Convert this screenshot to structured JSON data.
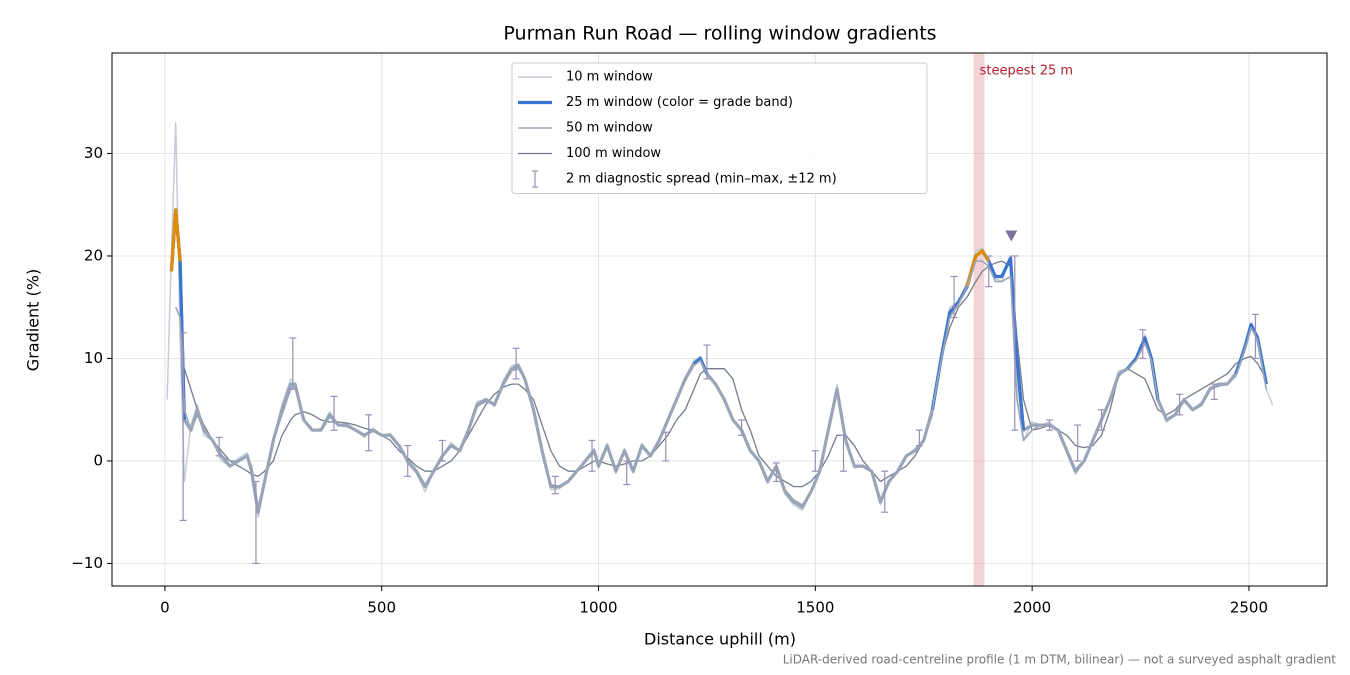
{
  "chart_data": {
    "type": "line",
    "title": "Purman Run Road — rolling window gradients",
    "xlabel": "Distance uphill (m)",
    "ylabel": "Gradient (%)",
    "note": "LiDAR-derived road-centreline profile (1 m DTM, bilinear) — not a surveyed asphalt gradient",
    "xlim": [
      -122,
      2680
    ],
    "ylim": [
      -12.2,
      39.8
    ],
    "xticks": [
      0,
      500,
      1000,
      1500,
      2000,
      2500
    ],
    "yticks": [
      {
        "value": -10,
        "label": "−10"
      },
      0,
      10,
      20,
      30
    ],
    "grid": true,
    "legend": "upper center",
    "x": [
      5,
      15,
      25,
      35,
      45,
      60,
      75,
      90,
      110,
      130,
      150,
      170,
      190,
      200,
      215,
      230,
      250,
      270,
      290,
      300,
      320,
      340,
      360,
      380,
      400,
      420,
      440,
      460,
      480,
      500,
      520,
      540,
      560,
      580,
      600,
      620,
      640,
      660,
      680,
      700,
      720,
      740,
      760,
      780,
      800,
      815,
      830,
      850,
      870,
      890,
      910,
      930,
      950,
      970,
      990,
      1000,
      1020,
      1040,
      1060,
      1080,
      1100,
      1120,
      1140,
      1160,
      1180,
      1200,
      1220,
      1235,
      1250,
      1270,
      1290,
      1310,
      1330,
      1350,
      1370,
      1390,
      1410,
      1430,
      1450,
      1470,
      1490,
      1510,
      1530,
      1550,
      1570,
      1590,
      1610,
      1630,
      1650,
      1670,
      1690,
      1710,
      1730,
      1750,
      1770,
      1790,
      1810,
      1830,
      1850,
      1870,
      1885,
      1900,
      1915,
      1930,
      1950,
      1965,
      1980,
      2000,
      2020,
      2040,
      2060,
      2080,
      2100,
      2120,
      2140,
      2160,
      2180,
      2200,
      2220,
      2240,
      2260,
      2275,
      2290,
      2310,
      2330,
      2350,
      2370,
      2390,
      2410,
      2430,
      2450,
      2470,
      2490,
      2505,
      2520,
      2540,
      2555
    ],
    "series": [
      {
        "name": "10 m window",
        "color": "#c5ccd8",
        "width": 1.5,
        "values": [
          6,
          20,
          33,
          12,
          -2,
          3.5,
          5.5,
          2.5,
          2,
          0,
          -0.5,
          0.3,
          0.8,
          -1.5,
          -5.5,
          -2,
          2,
          5.5,
          8,
          7.5,
          4,
          3,
          3.2,
          4.8,
          3.5,
          3.3,
          3,
          2.3,
          3.2,
          2.5,
          2.7,
          1.5,
          -0.3,
          -1.2,
          -3,
          -1,
          0.5,
          1.8,
          1,
          3.2,
          5.8,
          6,
          5.3,
          7.8,
          9.3,
          9.5,
          8,
          5,
          0.8,
          -2.8,
          -2.7,
          -2,
          -1,
          0.2,
          1.2,
          -0.7,
          1.7,
          -1.2,
          1.2,
          -1.2,
          1.7,
          0.5,
          2.2,
          4,
          6.2,
          8,
          9.8,
          10.2,
          8.5,
          7.5,
          6.2,
          4,
          3,
          1,
          0,
          -2.2,
          -0.5,
          -3.2,
          -4.3,
          -4.8,
          -3,
          -1,
          3,
          7.5,
          2,
          -0.7,
          -0.5,
          -1,
          -4.3,
          -2,
          -1,
          0.5,
          1.2,
          2,
          5.5,
          10.5,
          15,
          15.5,
          17.5,
          20.5,
          20.8,
          19.5,
          17.8,
          17.5,
          20,
          8,
          2,
          3.8,
          3.5,
          3.8,
          3,
          0.8,
          -1.3,
          0,
          2,
          4,
          6.2,
          8.8,
          9,
          10.2,
          12.3,
          10,
          5.8,
          3.8,
          4.5,
          6,
          5,
          5.7,
          7.2,
          7.5,
          7.5,
          8.8,
          11.2,
          13.5,
          12,
          7,
          5.4
        ]
      },
      {
        "name": "25 m window (color = grade band)",
        "color": "#3a75d0",
        "line_color": "#97a5b8",
        "width": 3.2,
        "grade_bands": [
          {
            "min": 10,
            "color": "#3a75d0"
          },
          {
            "min": 20,
            "color": "#e08c00"
          },
          {
            "min": 25,
            "color": "#c0201e"
          }
        ],
        "values": [
          null,
          18.5,
          24.5,
          19.5,
          4,
          3,
          5,
          3,
          2,
          0.5,
          -0.5,
          0,
          0.5,
          -1,
          -5,
          -2,
          2,
          5,
          7.5,
          7.5,
          4,
          3,
          3,
          4.5,
          3.5,
          3.5,
          3,
          2.5,
          3,
          2.5,
          2.5,
          1.5,
          0,
          -1,
          -2.5,
          -1,
          0.5,
          1.5,
          1,
          3,
          5.5,
          6,
          5.5,
          7.5,
          9,
          9.3,
          8,
          5,
          1,
          -2.5,
          -2.5,
          -2,
          -1,
          0,
          1,
          -0.5,
          1.5,
          -1,
          1,
          -1,
          1.5,
          0.5,
          2,
          4,
          6,
          8,
          9.5,
          10,
          8.5,
          7.5,
          6,
          4,
          3,
          1,
          0,
          -2,
          -0.5,
          -3,
          -4,
          -4.5,
          -3,
          -1,
          3,
          7,
          2,
          -0.5,
          -0.5,
          -1,
          -4,
          -2,
          -1,
          0.5,
          1,
          2,
          5,
          10,
          14.5,
          15.5,
          17,
          20,
          20.5,
          19.5,
          18,
          18,
          19.8,
          10,
          3,
          3.5,
          3.5,
          3.5,
          3,
          1,
          -1,
          0,
          2,
          4,
          6,
          8.5,
          9,
          10,
          12,
          10,
          6,
          4,
          4.5,
          6,
          5,
          5.5,
          7,
          7.5,
          7.5,
          8.5,
          11,
          13.3,
          12,
          7.5,
          null
        ]
      },
      {
        "name": "50 m window",
        "color": "#9aa6b8",
        "width": 1.6,
        "values": [
          null,
          null,
          15,
          14,
          5,
          3,
          4.5,
          3,
          2,
          0.5,
          0,
          0,
          0.5,
          -0.5,
          -4.5,
          -2,
          2,
          4.5,
          7,
          7.3,
          4,
          3,
          3,
          4.3,
          3.5,
          3.5,
          3,
          2.5,
          3,
          2.5,
          2.5,
          1.5,
          0,
          -1,
          -2.3,
          -1,
          0.5,
          1.5,
          1,
          3,
          5.3,
          5.8,
          5.5,
          7.3,
          8.8,
          9,
          8,
          5,
          1,
          -2.3,
          -2.5,
          -2,
          -1,
          0,
          0.8,
          -0.3,
          1.3,
          -0.8,
          0.8,
          -0.8,
          1.3,
          0.5,
          2,
          4,
          6,
          7.8,
          9.3,
          9.8,
          8.5,
          7.5,
          6,
          4,
          3,
          1,
          0,
          -1.8,
          -0.5,
          -2.8,
          -3.8,
          -4.3,
          -3,
          -1,
          3,
          6.8,
          2,
          -0.5,
          -0.5,
          -1,
          -3.8,
          -2,
          -1,
          0.5,
          1,
          2,
          5,
          9.8,
          14,
          15.3,
          17,
          19.5,
          19.5,
          19,
          17.5,
          17.5,
          18,
          6,
          2,
          3,
          3.5,
          3.5,
          3,
          1,
          -0.8,
          0,
          2,
          4,
          6,
          8.3,
          9,
          9.8,
          11.5,
          9.8,
          6,
          4,
          4.5,
          5.8,
          5,
          5.5,
          7,
          7.3,
          7.5,
          8.3,
          10.8,
          13,
          11.8,
          7,
          null
        ]
      },
      {
        "name": "100 m window",
        "color": "#737d8c",
        "width": 1.3,
        "values": [
          null,
          null,
          null,
          null,
          9,
          7,
          5,
          3.5,
          2,
          1,
          0,
          -0.5,
          -1,
          -1.3,
          -1.5,
          -1,
          0,
          2.5,
          4,
          4.5,
          4.8,
          4.5,
          4,
          3.8,
          3.8,
          3.7,
          3.5,
          3.2,
          3,
          2.5,
          2,
          1,
          0.3,
          -0.5,
          -1,
          -1,
          -0.5,
          0,
          1,
          2.5,
          4,
          5.5,
          6.5,
          7.2,
          7.5,
          7.5,
          7,
          6,
          3.5,
          1,
          -0.5,
          -1,
          -1,
          -0.5,
          0,
          0,
          -0.3,
          -0.5,
          -0.3,
          0,
          0,
          0.5,
          1.5,
          2.5,
          4,
          5,
          7,
          8.5,
          9,
          9,
          9,
          8,
          5,
          3,
          0.5,
          -0.5,
          -1.5,
          -2,
          -2.5,
          -2.5,
          -2,
          -1,
          0.5,
          2.5,
          2.5,
          1.5,
          0,
          -1,
          -2,
          -1.5,
          -1,
          -0.5,
          0.5,
          2,
          4.5,
          10,
          13,
          15,
          16,
          17.5,
          18.5,
          19,
          19.3,
          19.5,
          19,
          12,
          6,
          3,
          3.2,
          3.5,
          3,
          2.5,
          1.5,
          1.3,
          1.5,
          2.5,
          5,
          8.5,
          9,
          8.5,
          8,
          6.5,
          5,
          4.5,
          5,
          6,
          6.5,
          7,
          7.5,
          8,
          8.5,
          9.5,
          10,
          10.2,
          9.5,
          8,
          null
        ]
      }
    ],
    "spread": {
      "name": "2 m diagnostic spread (min–max, ±12 m)",
      "color": "#9b8fb8",
      "x": [
        42,
        125,
        210,
        295,
        390,
        470,
        560,
        640,
        810,
        900,
        985,
        1065,
        1155,
        1250,
        1330,
        1410,
        1500,
        1565,
        1660,
        1740,
        1820,
        1900,
        1960,
        2040,
        2105,
        2160,
        2255,
        2340,
        2420,
        2515
      ],
      "min": [
        -5.8,
        0.5,
        -10,
        7,
        3,
        1,
        -1.5,
        0,
        8,
        -3.2,
        -1,
        -2.3,
        0,
        8,
        2.5,
        -2,
        -1,
        -1,
        -5,
        1.5,
        14,
        17,
        3,
        3,
        0,
        3,
        10,
        4.5,
        6,
        10
      ],
      "max": [
        12.5,
        2.3,
        -2,
        12,
        6.3,
        4.5,
        1.5,
        2,
        11,
        -1.5,
        2,
        0,
        2.8,
        11.3,
        4,
        -0.2,
        1,
        2.5,
        -1,
        3,
        18,
        20,
        20,
        4,
        3.5,
        5,
        12.8,
        6.5,
        7.5,
        14.3
      ]
    },
    "highlight": {
      "x": [
        1865,
        1890
      ],
      "label": "steepest 25 m",
      "color": "#e8a0a8"
    },
    "peak_marker": {
      "x": 1952,
      "y": 22,
      "color": "#8070a0"
    }
  }
}
